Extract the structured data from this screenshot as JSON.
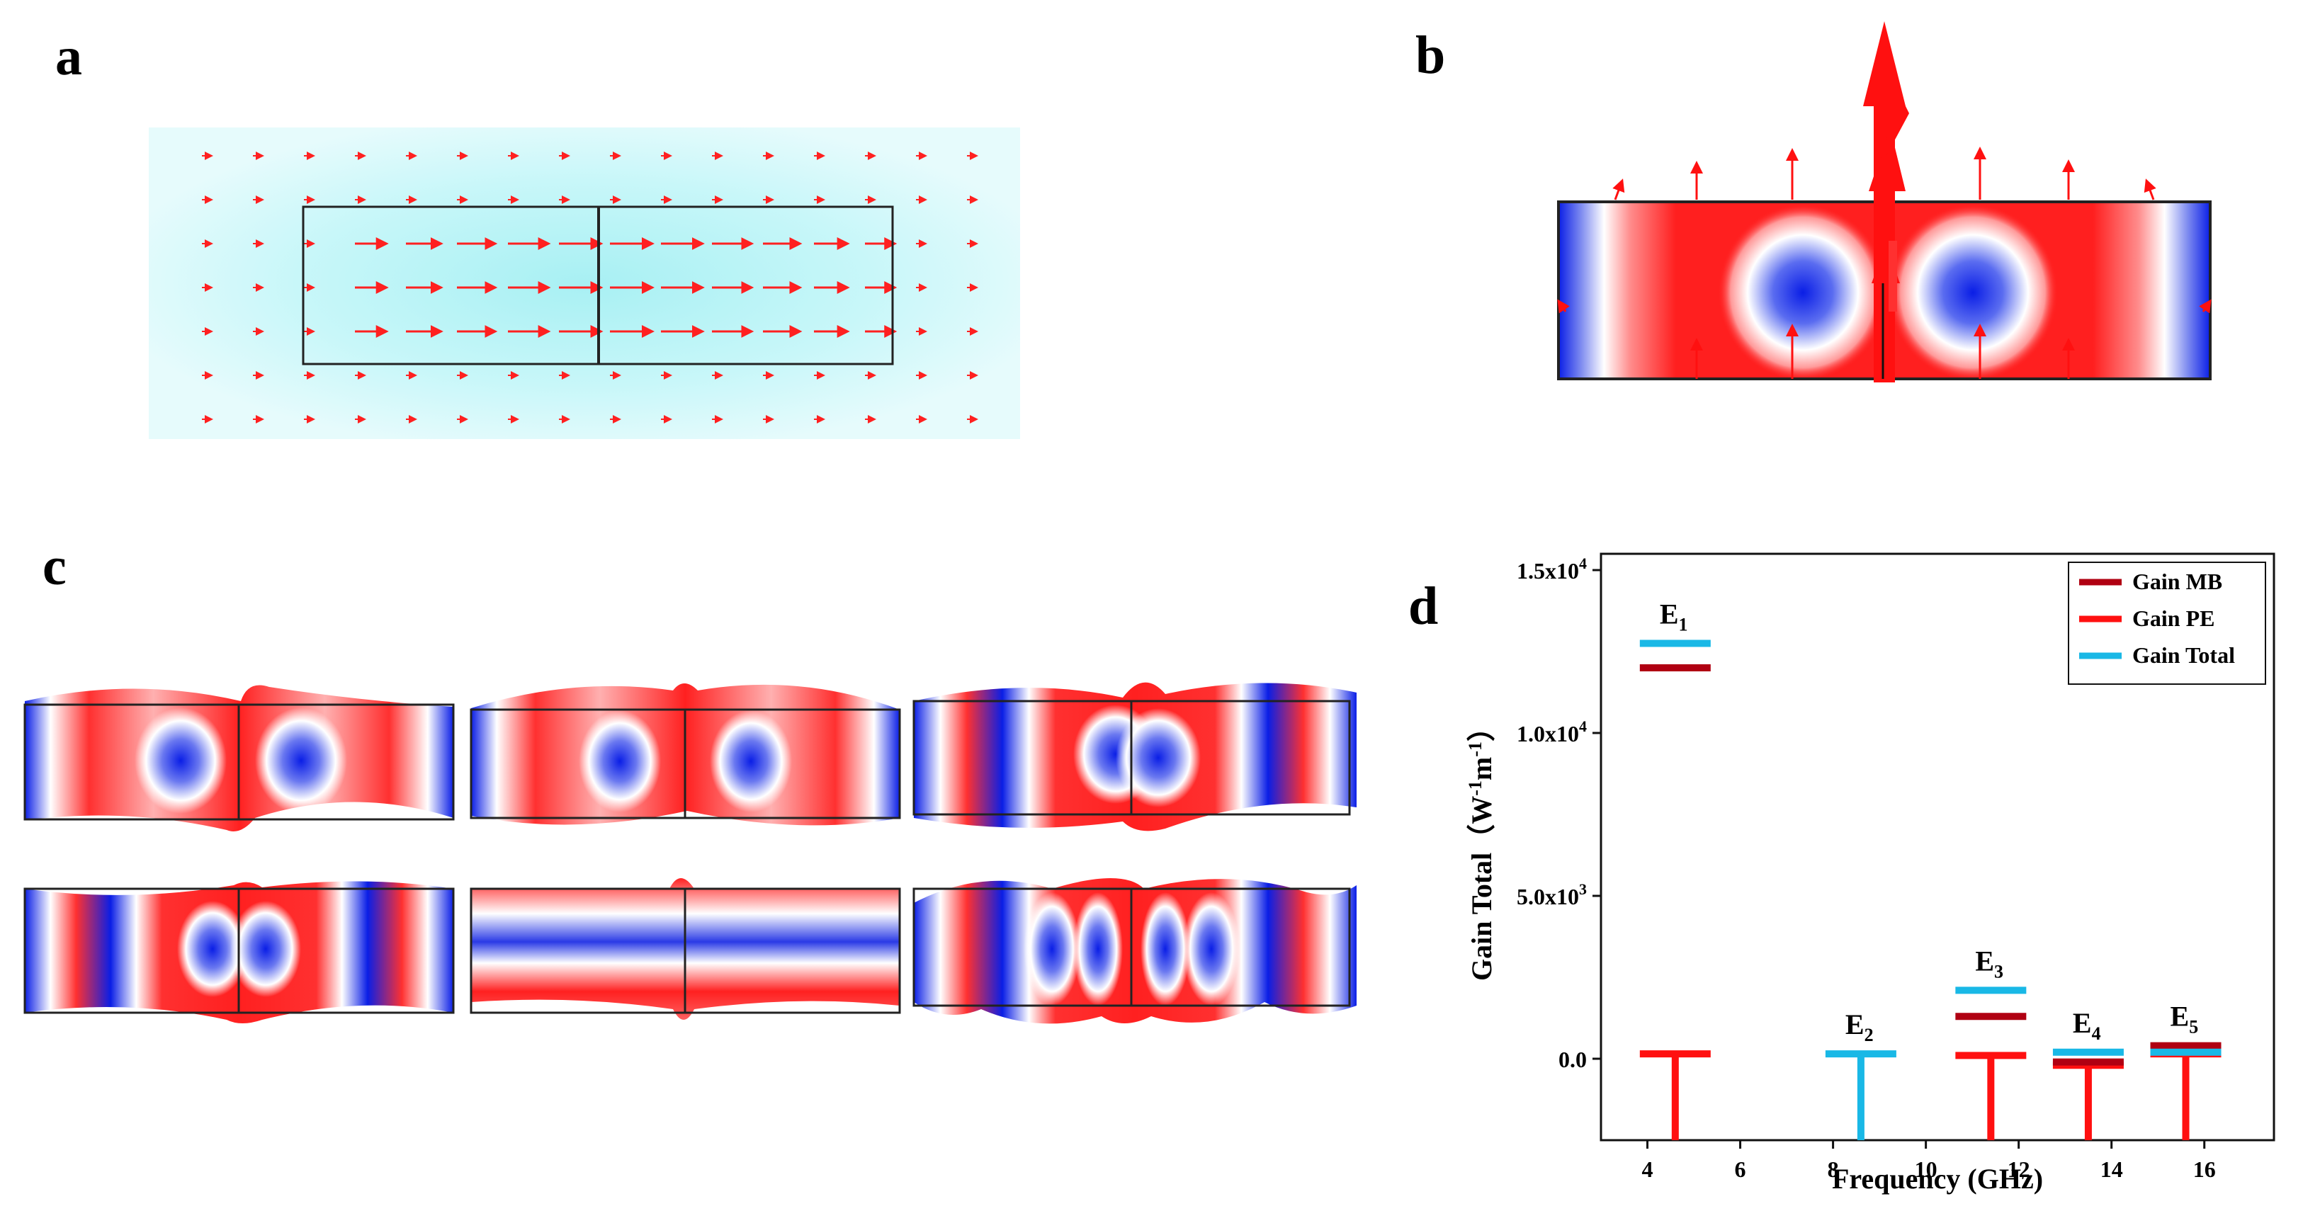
{
  "panels": {
    "a": "a",
    "b": "b",
    "c": "c",
    "d": "d"
  },
  "colors": {
    "gain_mb": "#b00012",
    "gain_pe": "#ff1010",
    "gain_total": "#19b8e6",
    "field_red": "#e60000",
    "field_blue": "#0a1ee6",
    "field_cyan": "#aef3f7"
  },
  "chart_data": {
    "type": "scatter",
    "xlabel": "Frequency (GHz)",
    "ylabel": "Gain Total（W",
    "ylabel_sup1": "-1",
    "ylabel_mid": "m",
    "ylabel_sup2": "-1",
    "ylabel_end": "）",
    "xlim": [
      3,
      17.5
    ],
    "ylim": [
      -2500,
      15500
    ],
    "xticks": [
      "4",
      "6",
      "8",
      "10",
      "12",
      "14",
      "16"
    ],
    "xtick_values": [
      4,
      6,
      8,
      10,
      12,
      14,
      16
    ],
    "yticks": [
      "0.0",
      "5.0x10",
      "1.0x10",
      "1.5x10"
    ],
    "ytick_exps": [
      "",
      "3",
      "4",
      "4"
    ],
    "ytick_values": [
      0,
      5000,
      10000,
      15000
    ],
    "legend": [
      {
        "name": "Gain MB",
        "color": "#b00012"
      },
      {
        "name": "Gain PE",
        "color": "#ff1010"
      },
      {
        "name": "Gain Total",
        "color": "#19b8e6"
      }
    ],
    "legend_position": "top-right",
    "modes": [
      {
        "label": "E",
        "sub": "1",
        "freq": 4.6,
        "gain_mb": 12000,
        "gain_pe": 150,
        "gain_total": 12750
      },
      {
        "label": "E",
        "sub": "2",
        "freq": 8.6,
        "gain_mb": 0,
        "gain_pe": 0,
        "gain_total": 150
      },
      {
        "label": "E",
        "sub": "3",
        "freq": 11.4,
        "gain_mb": 1300,
        "gain_pe": 100,
        "gain_total": 2100
      },
      {
        "label": "E",
        "sub": "4",
        "freq": 13.5,
        "gain_mb": -100,
        "gain_pe": -200,
        "gain_total": 200
      },
      {
        "label": "E",
        "sub": "5",
        "freq": 15.6,
        "gain_mb": 400,
        "gain_pe": 150,
        "gain_total": 200
      }
    ]
  }
}
